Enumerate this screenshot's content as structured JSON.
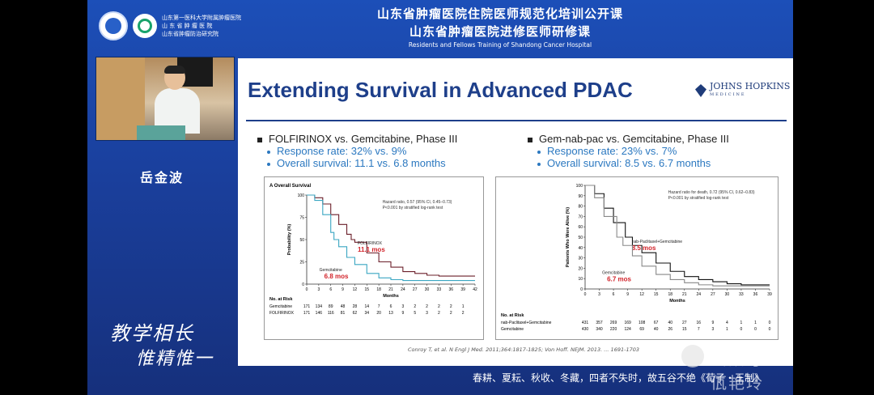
{
  "header": {
    "institution_lines": [
      "山东第一医科大学附属肿瘤医院",
      "山 东 省 肿 瘤 医 院",
      "山东省肿瘤防治研究院"
    ],
    "title_line1": "山东省肿瘤医院住院医师规范化培训公开课",
    "title_line2": "山东省肿瘤医院进修医师研修课",
    "title_line3": "Residents and Fellows Training of Shandong Cancer Hospital"
  },
  "speaker": {
    "name": "岳金波"
  },
  "slogan": {
    "line1": "教学相长",
    "line2": "惟精惟一"
  },
  "slide": {
    "title": "Extending Survival in Advanced PDAC",
    "logo_line1": "JOHNS HOPKINS",
    "logo_line2": "MEDICINE",
    "left": {
      "heading": "FOLFIRINOX  vs. Gemcitabine, Phase III",
      "bullet1": "Response rate: 32% vs. 9%",
      "bullet2": "Overall survival: 11.1 vs. 6.8 months"
    },
    "right": {
      "heading": "Gem-nab-pac vs. Gemcitabine, Phase III",
      "bullet1": "Response rate: 23% vs. 7%",
      "bullet2": "Overall survival: 8.5 vs. 6.7 months"
    },
    "citation": "Conroy T, et al. N Engl J Med. 2011;364:1817-1825; Von Hoff. NEJM. 2013. ... 1691-1703"
  },
  "chart_data": [
    {
      "type": "line",
      "title": "A  Overall Survival",
      "xlabel": "Months",
      "ylabel": "Probability (%)",
      "xlim": [
        0,
        42
      ],
      "ylim": [
        0,
        100
      ],
      "x_ticks": [
        0,
        3,
        6,
        9,
        12,
        15,
        18,
        21,
        24,
        27,
        30,
        33,
        36,
        39,
        42
      ],
      "y_ticks": [
        0,
        25,
        50,
        75,
        100
      ],
      "annotation": [
        "Hazard ratio, 0.57 (95% CI, 0.45–0.73)",
        "P<0.001 by stratified log-rank test"
      ],
      "series": [
        {
          "name": "FOLFIRINOX",
          "color": "#6b1f2a",
          "median_label": "11.1 mos",
          "x": [
            0,
            2,
            4,
            6,
            8,
            10,
            11.1,
            12,
            15,
            18,
            21,
            24,
            27,
            30,
            33,
            36,
            39,
            42
          ],
          "y": [
            100,
            97,
            90,
            78,
            67,
            56,
            50,
            47,
            35,
            25,
            19,
            14,
            12,
            10,
            9,
            9,
            9,
            9
          ]
        },
        {
          "name": "Gemcitabine",
          "color": "#3aa6c2",
          "median_label": "6.8 mos",
          "x": [
            0,
            2,
            4,
            6,
            6.8,
            8,
            10,
            12,
            15,
            18,
            21,
            24,
            27,
            30,
            33,
            36,
            39,
            42
          ],
          "y": [
            100,
            94,
            78,
            58,
            50,
            42,
            30,
            22,
            12,
            7,
            5,
            4,
            4,
            4,
            4,
            4,
            4,
            4
          ]
        }
      ],
      "risk_table": {
        "header": "No. at Risk",
        "rows": [
          {
            "label": "Gemcitabine",
            "values": [
              171,
              134,
              89,
              48,
              28,
              14,
              7,
              6,
              3,
              2,
              2,
              2,
              2,
              1
            ]
          },
          {
            "label": "FOLFIRINOX",
            "values": [
              171,
              146,
              116,
              81,
              62,
              34,
              20,
              13,
              9,
              5,
              3,
              2,
              2,
              2
            ]
          }
        ]
      }
    },
    {
      "type": "line",
      "title": "",
      "xlabel": "Months",
      "ylabel": "Patients Who Were Alive (%)",
      "xlim": [
        0,
        39
      ],
      "ylim": [
        0,
        100
      ],
      "x_ticks": [
        0,
        3,
        6,
        9,
        12,
        15,
        18,
        21,
        24,
        27,
        30,
        33,
        36,
        39
      ],
      "y_ticks": [
        0,
        10,
        20,
        30,
        40,
        50,
        60,
        70,
        80,
        90,
        100
      ],
      "annotation": [
        "Hazard ratio for death, 0.72 (95% CI, 0.62–0.83)",
        "P<0.001 by stratified log-rank test"
      ],
      "series": [
        {
          "name": "nab-Paclitaxel+Gemcitabine",
          "color": "#111111",
          "median_label": "8.5 mos",
          "x": [
            0,
            2,
            4,
            6,
            8.5,
            10,
            12,
            15,
            18,
            21,
            24,
            27,
            30,
            33,
            36,
            39
          ],
          "y": [
            100,
            92,
            78,
            64,
            50,
            42,
            35,
            25,
            17,
            12,
            9,
            7,
            5,
            4,
            4,
            4
          ]
        },
        {
          "name": "Gemcitabine",
          "color": "#888888",
          "median_label": "6.7 mos",
          "x": [
            0,
            2,
            4,
            6.7,
            8,
            10,
            12,
            15,
            18,
            21,
            24,
            27,
            30,
            33,
            36,
            39
          ],
          "y": [
            100,
            88,
            70,
            50,
            42,
            32,
            22,
            14,
            9,
            6,
            4,
            3,
            3,
            3,
            3,
            3
          ]
        }
      ],
      "risk_table": {
        "header": "No. at Risk",
        "rows": [
          {
            "label": "nab-Paclitaxel+Gemcitabine",
            "values": [
              431,
              357,
              269,
              169,
              108,
              67,
              40,
              27,
              16,
              9,
              4,
              1,
              1,
              0
            ]
          },
          {
            "label": "Gemcitabine",
            "values": [
              430,
              340,
              220,
              124,
              69,
              40,
              26,
              15,
              7,
              3,
              1,
              0,
              0,
              0
            ]
          }
        ]
      }
    }
  ],
  "footer": {
    "caption": "春耕、夏耘、秋收、冬藏，四者不失时，故五谷不绝《荀子・王制》",
    "watermark": "公众号 · 佤艳玲"
  },
  "colors": {
    "brand_blue": "#1c4fb8",
    "slide_title": "#1e3f8a",
    "bullet_blue": "#2b78c0",
    "median_red": "#d2232a"
  }
}
